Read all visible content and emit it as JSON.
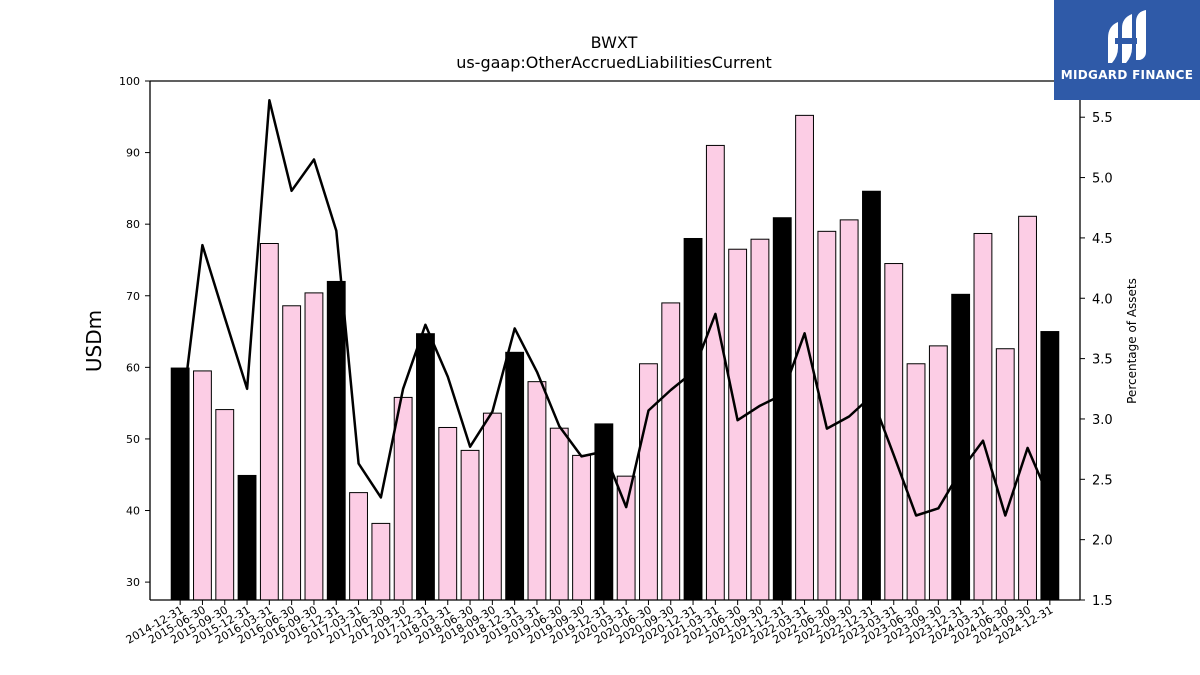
{
  "chart_data": {
    "type": "bar",
    "title": "BWXT",
    "subtitle": "us-gaap:OtherAccruedLiabilitiesCurrent",
    "ylabel": "USDm",
    "y2label": "Percentage of Assets",
    "ylim": [
      27.5,
      100
    ],
    "y2lim": [
      1.5,
      5.8
    ],
    "yticks": [
      30,
      40,
      50,
      60,
      70,
      80,
      90,
      100
    ],
    "y2ticks": [
      1.5,
      2.0,
      2.5,
      3.0,
      3.5,
      4.0,
      4.5,
      5.0,
      5.5
    ],
    "grid": false,
    "categories": [
      "2014-12-31",
      "2015-06-30",
      "2015-09-30",
      "2015-12-31",
      "2016-03-31",
      "2016-06-30",
      "2016-09-30",
      "2016-12-31",
      "2017-03-31",
      "2017-06-30",
      "2017-09-30",
      "2017-12-31",
      "2018-03-31",
      "2018-06-30",
      "2018-09-30",
      "2018-12-31",
      "2019-03-31",
      "2019-06-30",
      "2019-09-30",
      "2019-12-31",
      "2020-03-31",
      "2020-06-30",
      "2020-09-30",
      "2020-12-31",
      "2021-03-31",
      "2021-06-30",
      "2021-09-30",
      "2021-12-31",
      "2022-03-31",
      "2022-06-30",
      "2022-09-30",
      "2022-12-31",
      "2023-03-31",
      "2023-06-30",
      "2023-09-30",
      "2023-12-31",
      "2024-03-31",
      "2024-06-30",
      "2024-09-30",
      "2024-12-31"
    ],
    "series": [
      {
        "type": "bar",
        "values": [
          59.9,
          59.5,
          54.1,
          44.9,
          77.3,
          68.6,
          70.4,
          72.0,
          42.5,
          38.2,
          55.8,
          64.7,
          51.6,
          48.4,
          53.6,
          62.1,
          58.0,
          51.5,
          47.7,
          52.1,
          44.8,
          60.5,
          69.0,
          78.0,
          91.0,
          76.5,
          77.9,
          80.9,
          95.2,
          79.0,
          80.6,
          84.6,
          74.5,
          60.5,
          63.0,
          70.2,
          78.7,
          62.6,
          81.1,
          65.0
        ],
        "year_end": [
          true,
          false,
          false,
          true,
          false,
          false,
          false,
          true,
          false,
          false,
          false,
          true,
          false,
          false,
          false,
          true,
          false,
          false,
          false,
          true,
          false,
          false,
          false,
          true,
          false,
          false,
          false,
          true,
          false,
          false,
          false,
          true,
          false,
          false,
          false,
          true,
          false,
          false,
          false,
          true
        ],
        "colors": {
          "year_end": "#000000",
          "quarter": "#fccde5"
        }
      },
      {
        "type": "line",
        "axis": "right",
        "color": "#000000",
        "values": [
          2.93,
          4.44,
          3.84,
          3.25,
          5.64,
          4.89,
          5.15,
          4.56,
          2.63,
          2.35,
          3.25,
          3.78,
          3.35,
          2.77,
          3.06,
          3.75,
          3.39,
          2.94,
          2.69,
          2.73,
          2.27,
          3.07,
          3.24,
          3.39,
          3.87,
          2.99,
          3.11,
          3.2,
          3.71,
          2.92,
          3.02,
          3.19,
          2.7,
          2.2,
          2.26,
          2.57,
          2.82,
          2.2,
          2.76,
          2.33
        ]
      }
    ]
  },
  "logo": {
    "text": "MIDGARD FINANCE",
    "icon": "midgard-logo-icon",
    "bg": "#2f5aa8"
  }
}
